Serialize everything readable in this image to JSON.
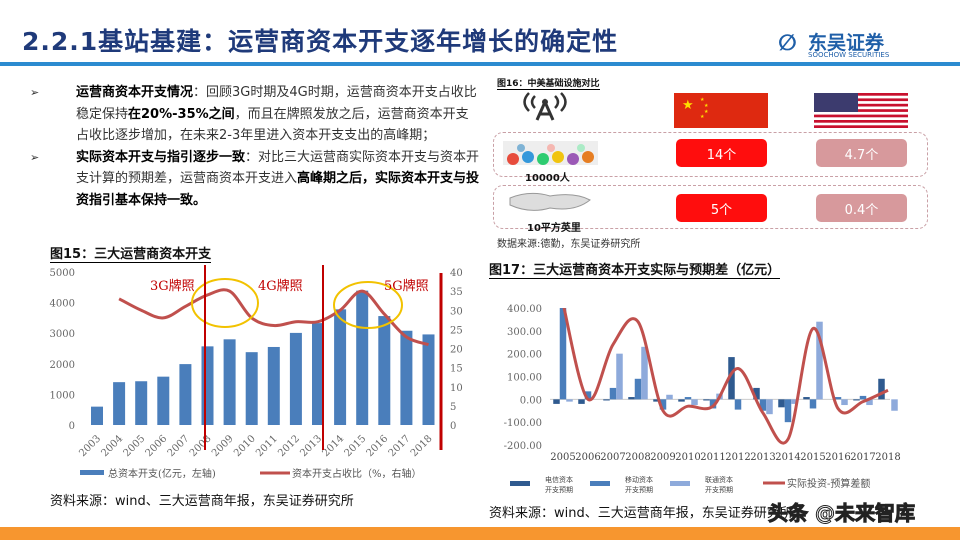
{
  "header": {
    "title": "2.2.1基站基建：运营商资本开支逐年增长的确定性",
    "logo_cn": "东吴证券",
    "logo_en": "SOOCHOW SECURITIES",
    "logo_mark": "SCS"
  },
  "bullets": [
    {
      "marker": "➢",
      "bold": "运营商资本开支情况",
      "rest1": "：回顾3G时期及4G时期，运营商资本开支占收比稳定保持",
      "bold2": "在20%-35%之间",
      "rest2": "，而且在牌照发放之后，运营商资本开支占收比逐步增加，在未来2-3年里进入资本开支支出的高峰期；"
    },
    {
      "marker": "➢",
      "bold": "实际资本开支与指引逐步一致",
      "rest1": "：对比三大运营商实际资本开支与资本开支计算的预期差，运营商资本开支进入",
      "bold2": "高峰期之后，实际资本开支与投资指引基本保持一致。",
      "rest2": ""
    }
  ],
  "fig16": {
    "title": "图16：中美基础设施对比",
    "rows": [
      {
        "label": "10000人",
        "china": "14个",
        "us": "4.7个"
      },
      {
        "label": "10平方英里",
        "china": "5个",
        "us": "0.4个"
      }
    ],
    "source": "数据来源:德勤，东吴证券研究所",
    "colors": {
      "china": "#ff0d0d",
      "us": "#d7999c"
    }
  },
  "fig15": {
    "title": "图15：三大运营商资本开支",
    "source": "资料来源：wind、三大运营商年报，东吴证券研究所",
    "annotations": [
      "3G牌照",
      "4G牌照",
      "5G牌照"
    ]
  },
  "fig17": {
    "title": "图17：三大运营商资本开支实际与预期差（亿元）",
    "source": "资料来源：wind、三大运营商年报，东吴证券研究所"
  },
  "watermark": "头条 @未来智库",
  "chart_data": [
    {
      "type": "bar+line",
      "categories": [
        "2003",
        "2004",
        "2005",
        "2006",
        "2007",
        "2008",
        "2009",
        "2010",
        "2011",
        "2012",
        "2013",
        "2014",
        "2015",
        "2016",
        "2017",
        "2018"
      ],
      "series": [
        {
          "name": "总资本开支(亿元，左轴)",
          "kind": "bar",
          "axis": "left",
          "color": "#4a7ebb",
          "values": [
            600,
            1400,
            1430,
            1580,
            1990,
            2570,
            2800,
            2380,
            2550,
            3010,
            3330,
            3780,
            4390,
            3560,
            3080,
            2960
          ]
        },
        {
          "name": "资本开支占收比（%，右轴）",
          "kind": "line",
          "axis": "right",
          "color": "#c0504d",
          "values": [
            null,
            33,
            30,
            28,
            31,
            34,
            35,
            28,
            26,
            27,
            27,
            30,
            35,
            29,
            23,
            21
          ]
        }
      ],
      "ylim_left": [
        0,
        5000
      ],
      "yticks_left": [
        0,
        1000,
        2000,
        3000,
        4000,
        5000
      ],
      "ylim_right": [
        0,
        40
      ],
      "yticks_right": [
        0,
        5,
        10,
        15,
        20,
        25,
        30,
        35,
        40
      ],
      "markers": [
        {
          "label": "3G牌照",
          "at": "2008"
        },
        {
          "label": "4G牌照",
          "at": "2013"
        },
        {
          "label": "5G牌照",
          "at": "2018"
        }
      ],
      "legend": "bottom"
    },
    {
      "type": "bar+line",
      "categories": [
        "2005",
        "2006",
        "2007",
        "2008",
        "2009",
        "2010",
        "2011",
        "2012",
        "2013",
        "2014",
        "2015",
        "2016",
        "2017",
        "2018"
      ],
      "series": [
        {
          "name": "电信资本开支预期",
          "kind": "bar",
          "color": "#2f5a8f",
          "values": [
            -20,
            -20,
            -5,
            10,
            -10,
            -10,
            -5,
            185,
            50,
            -35,
            10,
            0,
            -5,
            90
          ]
        },
        {
          "name": "移动资本开支预期",
          "kind": "bar",
          "color": "#4a7ebb",
          "values": [
            400,
            35,
            50,
            90,
            -45,
            10,
            -40,
            -45,
            -50,
            -100,
            -40,
            10,
            15,
            0
          ]
        },
        {
          "name": "联通资本开支预期",
          "kind": "bar",
          "color": "#8eaadb",
          "values": [
            -10,
            0,
            200,
            230,
            20,
            -25,
            25,
            0,
            -65,
            -20,
            340,
            -25,
            -25,
            -50
          ]
        },
        {
          "name": "实际投资-预算差额",
          "kind": "line",
          "color": "#c0504d",
          "values": [
            420,
            0,
            240,
            340,
            -50,
            -30,
            -30,
            135,
            -60,
            -175,
            310,
            -40,
            -10,
            40
          ]
        }
      ],
      "ylim": [
        -200,
        400
      ],
      "yticks": [
        "-200.00",
        "-100.00",
        "0.00",
        "100.00",
        "200.00",
        "300.00",
        "400.00"
      ],
      "legend": "bottom"
    }
  ]
}
